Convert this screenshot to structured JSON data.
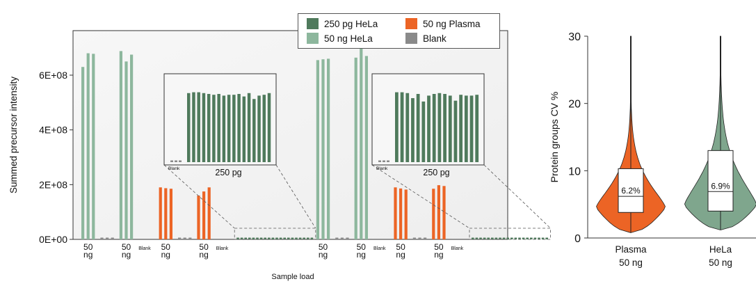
{
  "colors": {
    "hela250": "#4f7a5c",
    "hela50": "#8db79d",
    "plasma": "#ec6425",
    "blank": "#8a8a8a",
    "violin_plasma": "#ec6425",
    "violin_hela": "#7fa68d"
  },
  "legend": {
    "items": [
      {
        "label": "250 pg HeLa",
        "color": "#4f7a5c"
      },
      {
        "label": "50 ng Plasma",
        "color": "#ec6425"
      },
      {
        "label": "50 ng HeLa",
        "color": "#8db79d"
      },
      {
        "label": "Blank",
        "color": "#8a8a8a"
      }
    ]
  },
  "chart_data": [
    {
      "type": "bar",
      "xlabel": "Sample load",
      "ylabel": "Summed precursor intensity",
      "ylim": [
        0,
        720000000
      ],
      "yticks": [
        0,
        200000000,
        400000000,
        600000000
      ],
      "yticklabels": [
        "0E+00",
        "2E+08",
        "4E+08",
        "6E+08"
      ],
      "grid": false,
      "groups": [
        {
          "label": "50 ng",
          "series": "50 ng HeLa",
          "values": [
            630000000,
            680000000,
            678000000
          ]
        },
        {
          "label": "",
          "series": "Blank",
          "values": [
            3000000,
            3000000,
            3000000
          ]
        },
        {
          "label": "50 ng",
          "series": "50 ng HeLa",
          "values": [
            688000000,
            650000000,
            675000000
          ]
        },
        {
          "label": "Blank",
          "series": "Blank",
          "values": [
            0,
            0,
            0
          ]
        },
        {
          "label": "50 ng",
          "series": "50 ng Plasma",
          "values": [
            190000000,
            187000000,
            185000000
          ]
        },
        {
          "label": "",
          "series": "Blank",
          "values": [
            3000000,
            3000000,
            3000000
          ]
        },
        {
          "label": "50 ng",
          "series": "50 ng Plasma",
          "values": [
            160000000,
            175000000,
            190000000
          ]
        },
        {
          "label": "Blank",
          "series": "Blank",
          "values": [
            0,
            0,
            0
          ]
        },
        {
          "label": "",
          "series": "250 pg HeLa",
          "values": [
            3500000,
            3500000,
            3500000,
            3500000,
            3500000,
            3500000,
            3500000,
            3500000,
            3500000,
            3500000,
            3500000,
            3500000,
            3500000,
            3500000,
            3500000,
            3500000,
            3500000,
            3500000,
            3500000,
            3500000
          ]
        },
        {
          "label": "50 ng",
          "series": "50 ng HeLa",
          "values": [
            655000000,
            658000000,
            660000000
          ]
        },
        {
          "label": "",
          "series": "Blank",
          "values": [
            3000000,
            3000000,
            3000000
          ]
        },
        {
          "label": "50 ng",
          "series": "50 ng HeLa",
          "values": [
            664000000,
            705000000,
            670000000
          ]
        },
        {
          "label": "Blank",
          "series": "Blank",
          "values": [
            0,
            0,
            0
          ]
        },
        {
          "label": "50 ng",
          "series": "50 ng Plasma",
          "values": [
            190000000,
            186000000,
            182000000
          ]
        },
        {
          "label": "",
          "series": "Blank",
          "values": [
            3000000,
            3000000,
            3000000
          ]
        },
        {
          "label": "50 ng",
          "series": "50 ng Plasma",
          "values": [
            185000000,
            198000000,
            195000000
          ]
        },
        {
          "label": "Blank",
          "series": "Blank",
          "values": [
            0,
            0,
            0
          ]
        },
        {
          "label": "",
          "series": "250 pg HeLa",
          "values": [
            3500000,
            3500000,
            3500000,
            3500000,
            3500000,
            3500000,
            3500000,
            3500000,
            3500000,
            3500000,
            3500000,
            3500000,
            3500000,
            3500000,
            3500000,
            3500000,
            3500000,
            3500000,
            3500000,
            3500000
          ]
        }
      ],
      "insets": [
        {
          "label": "250 pg",
          "blank_label": "Blank",
          "blank_count": 3,
          "ylim": [
            0,
            1
          ],
          "values": [
            0.82,
            0.83,
            0.83,
            0.82,
            0.81,
            0.8,
            0.81,
            0.79,
            0.8,
            0.8,
            0.81,
            0.78,
            0.82,
            0.75,
            0.79,
            0.8,
            0.82
          ]
        },
        {
          "label": "250 pg",
          "blank_label": "Blank",
          "blank_count": 3,
          "ylim": [
            0,
            1
          ],
          "values": [
            0.83,
            0.83,
            0.82,
            0.76,
            0.81,
            0.72,
            0.79,
            0.81,
            0.82,
            0.81,
            0.79,
            0.73,
            0.8,
            0.79,
            0.79,
            0.8
          ]
        }
      ]
    },
    {
      "type": "violin",
      "ylabel": "Protein groups CV %",
      "ylim": [
        0,
        30
      ],
      "yticks": [
        0,
        10,
        20,
        30
      ],
      "categories": [
        {
          "line1": "Plasma",
          "line2": "50 ng",
          "median": 6.2,
          "median_label": "6.2%",
          "q1": 3.8,
          "q3": 10.3,
          "min": 0.8,
          "max": 30,
          "color": "#ec6425"
        },
        {
          "line1": "HeLa",
          "line2": "50 ng",
          "median": 6.9,
          "median_label": "6.9%",
          "q1": 4.0,
          "q3": 13.0,
          "min": 1.2,
          "max": 30,
          "color": "#7fa68d"
        }
      ]
    }
  ]
}
